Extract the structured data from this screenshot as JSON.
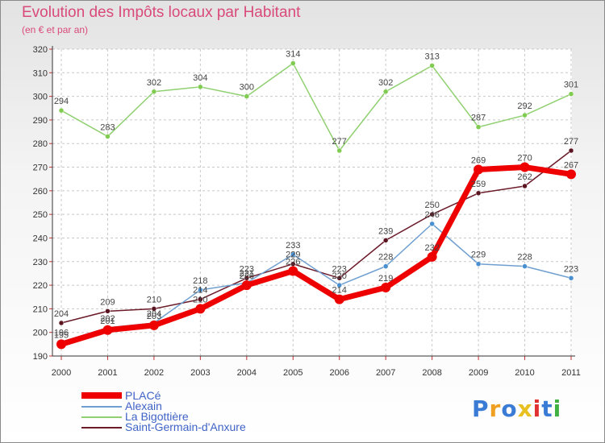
{
  "chart_data": {
    "type": "line",
    "title": "Evolution des Impôts locaux par Habitant",
    "subtitle": "(en € et par an)",
    "categories": [
      "2000",
      "2001",
      "2002",
      "2003",
      "2004",
      "2005",
      "2006",
      "2007",
      "2008",
      "2009",
      "2010",
      "2011"
    ],
    "ylim": [
      190,
      320
    ],
    "yticks": [
      190,
      200,
      210,
      220,
      230,
      240,
      250,
      260,
      270,
      280,
      290,
      300,
      310,
      320
    ],
    "series": [
      {
        "name": "PLACé",
        "color": "#ee0000",
        "values": [
          195,
          201,
          203,
          210,
          220,
          226,
          214,
          219,
          232,
          269,
          270,
          267
        ]
      },
      {
        "name": "Alexain",
        "color": "#6f9fd0",
        "values": [
          196,
          202,
          204,
          218,
          221,
          233,
          220,
          228,
          246,
          229,
          228,
          223
        ]
      },
      {
        "name": "La Bigottière",
        "color": "#90d070",
        "values": [
          294,
          283,
          302,
          304,
          300,
          314,
          277,
          302,
          313,
          287,
          292,
          301
        ]
      },
      {
        "name": "Saint-Germain-d'Anxure",
        "color": "#6b1a28",
        "values": [
          204,
          209,
          210,
          214,
          223,
          229,
          223,
          239,
          250,
          259,
          262,
          277
        ]
      }
    ]
  },
  "logo": {
    "letters": [
      "P",
      "r",
      "o",
      "x",
      "i",
      "t",
      "i"
    ],
    "colors": [
      "#3a7bd5",
      "#f0a020",
      "#3a7bd5",
      "#e8c020",
      "#e03030",
      "#3a7bd5",
      "#40b040"
    ]
  }
}
